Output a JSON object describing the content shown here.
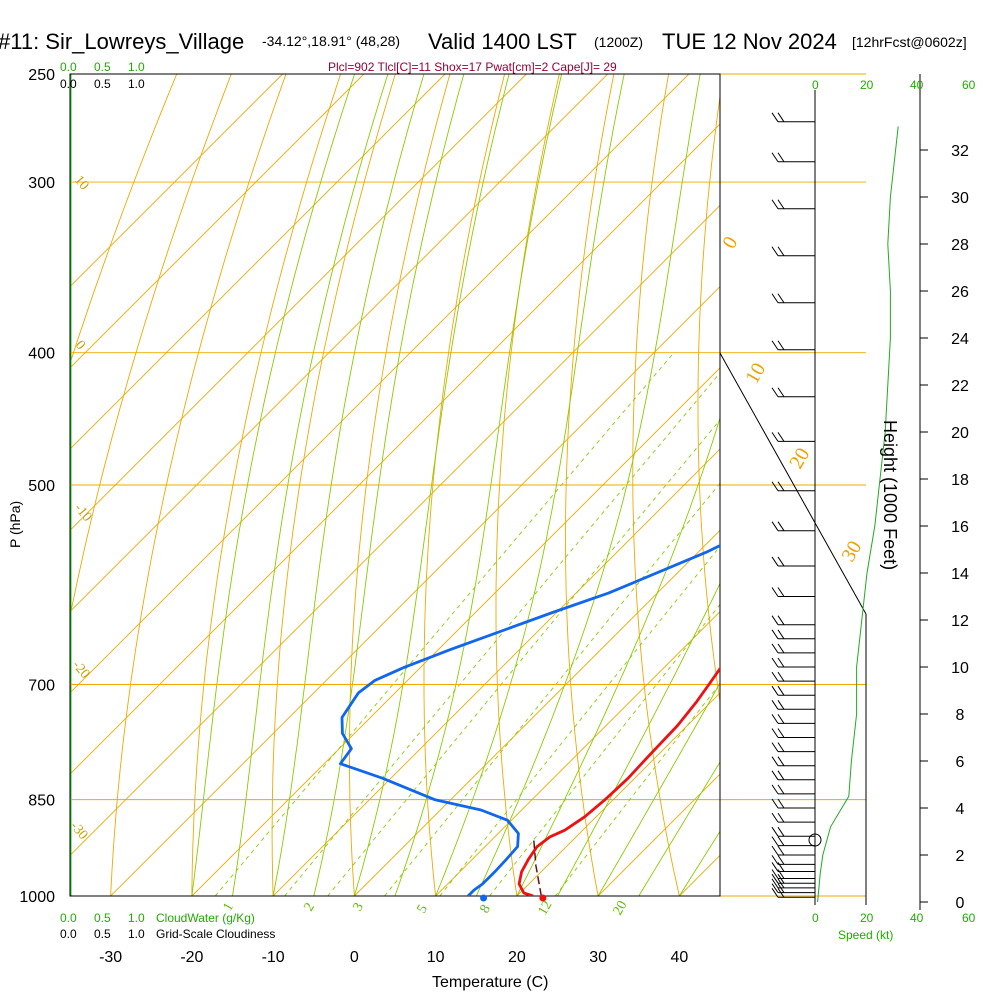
{
  "header": {
    "station": "#11: Sir_Lowreys_Village",
    "coords": "-34.12°,18.91° (48,28)",
    "valid": "Valid 1400 LST",
    "utc": "(1200Z)",
    "date": "TUE 12 Nov 2024",
    "forecast": "[12hrFcst@0602z]"
  },
  "params_line": "Plcl=902 Tlcl[C]=11 Shox=17 Pwat[cm]=2 Cape[J]= 29",
  "chart_data": {
    "type": "line",
    "title": "",
    "xlabel": "Temperature (C)",
    "ylabel": "P (hPa)",
    "right_axis_label": "Height (1000 Feet)",
    "xlim": [
      -35,
      45
    ],
    "ylim_hPa": [
      1000,
      250
    ],
    "x_ticks": [
      -30,
      -20,
      -10,
      0,
      10,
      20,
      30,
      40
    ],
    "p_ticks": [
      250,
      300,
      400,
      500,
      700,
      850,
      1000
    ],
    "height_ticks_kft": [
      0,
      2,
      4,
      6,
      8,
      10,
      12,
      14,
      16,
      18,
      20,
      22,
      24,
      26,
      28,
      30,
      32
    ],
    "cloud_scale_ticks": [
      "0.0",
      "0.5",
      "1.0"
    ],
    "speed_ticks": [
      "0",
      "20",
      "40",
      "60"
    ],
    "cloudwater_label": "CloudWater (g/Kg)",
    "cloudiness_label": "Grid-Scale Cloudiness",
    "speed_label": "Speed (kt)",
    "isotherm_labels": [
      "0",
      "10",
      "20",
      "30"
    ],
    "theta_labels": [
      "10",
      "0",
      "-10",
      "-20",
      "-30"
    ],
    "mixing_ratio_labels": [
      "1",
      "2",
      "3",
      "5",
      "8",
      "12",
      "20"
    ],
    "series": [
      {
        "name": "",
        "color": "#ee1111",
        "points": [
          [
            1000,
            22.0
          ],
          [
            995,
            20.5
          ],
          [
            980,
            18.8
          ],
          [
            960,
            17.6
          ],
          [
            940,
            16.9
          ],
          [
            920,
            16.4
          ],
          [
            905,
            16.8
          ],
          [
            895,
            17.8
          ],
          [
            875,
            18.6
          ],
          [
            850,
            19.0
          ],
          [
            820,
            19.2
          ],
          [
            790,
            19.0
          ],
          [
            750,
            18.8
          ],
          [
            720,
            18.2
          ],
          [
            700,
            17.6
          ],
          [
            650,
            16.0
          ],
          [
            600,
            14.8
          ],
          [
            550,
            13.6
          ],
          [
            500,
            12.0
          ],
          [
            470,
            10.6
          ],
          [
            440,
            8.8
          ],
          [
            400,
            6.0
          ],
          [
            380,
            4.0
          ],
          [
            350,
            0.6
          ],
          [
            320,
            -3.6
          ],
          [
            300,
            -6.8
          ],
          [
            280,
            -10.2
          ],
          [
            265,
            -13.0
          ]
        ]
      },
      {
        "name": "",
        "color": "#1166ee",
        "points": [
          [
            1000,
            14.0
          ],
          [
            990,
            14.0
          ],
          [
            980,
            14.3
          ],
          [
            960,
            14.3
          ],
          [
            940,
            14.2
          ],
          [
            920,
            14.0
          ],
          [
            900,
            12.5
          ],
          [
            880,
            9.5
          ],
          [
            865,
            5.0
          ],
          [
            850,
            -2.0
          ],
          [
            820,
            -11.0
          ],
          [
            800,
            -18.0
          ],
          [
            780,
            -18.5
          ],
          [
            760,
            -21.5
          ],
          [
            740,
            -23.5
          ],
          [
            725,
            -24.0
          ],
          [
            710,
            -24.5
          ],
          [
            695,
            -24.0
          ],
          [
            680,
            -22.0
          ],
          [
            660,
            -18.5
          ],
          [
            620,
            -10.5
          ],
          [
            600,
            -6.0
          ],
          [
            560,
            1.0
          ],
          [
            540,
            3.8
          ],
          [
            520,
            5.6
          ],
          [
            500,
            5.2
          ],
          [
            480,
            3.6
          ],
          [
            460,
            2.2
          ],
          [
            440,
            0.6
          ],
          [
            420,
            -1.5
          ],
          [
            400,
            -3.6
          ],
          [
            380,
            -4.7
          ],
          [
            370,
            -6.0
          ],
          [
            350,
            -5.5
          ],
          [
            320,
            -5.0
          ],
          [
            300,
            -5.3
          ],
          [
            280,
            -6.4
          ],
          [
            265,
            -7.0
          ]
        ]
      },
      {
        "name": "",
        "color": "#661111",
        "dashed": true,
        "points": [
          [
            1000,
            23.0
          ],
          [
            950,
            18.6
          ],
          [
            910,
            15.2
          ]
        ]
      }
    ],
    "surface_temp_c": 23.2,
    "surface_dewpoint_c": 15.9,
    "wind_profile": {
      "speed_kt": [
        [
          0,
          1
        ],
        [
          1.2,
          2
        ],
        [
          2.0,
          3
        ],
        [
          3.2,
          6
        ],
        [
          4.5,
          13
        ],
        [
          6,
          14
        ],
        [
          8,
          16
        ],
        [
          10,
          16
        ],
        [
          12,
          18
        ],
        [
          14,
          20
        ],
        [
          16,
          23
        ],
        [
          18,
          25
        ],
        [
          20,
          27
        ],
        [
          22,
          28
        ],
        [
          24,
          29
        ],
        [
          26,
          29
        ],
        [
          28,
          28
        ],
        [
          30,
          29
        ],
        [
          32,
          31
        ],
        [
          33,
          32
        ]
      ],
      "barb_heights_kft": [
        0.2,
        0.4,
        0.6,
        0.8,
        1.0,
        1.3,
        1.6,
        2.0,
        2.4,
        2.8,
        3.4,
        4.0,
        4.6,
        5.2,
        5.8,
        6.4,
        7.0,
        7.6,
        8.2,
        8.8,
        9.4,
        10.0,
        10.6,
        11.2,
        11.8,
        13.0,
        14.3,
        15.8,
        17.5,
        19.6,
        21.5,
        23.5,
        25.5,
        27.5,
        29.5,
        31.5,
        33.2
      ]
    }
  }
}
